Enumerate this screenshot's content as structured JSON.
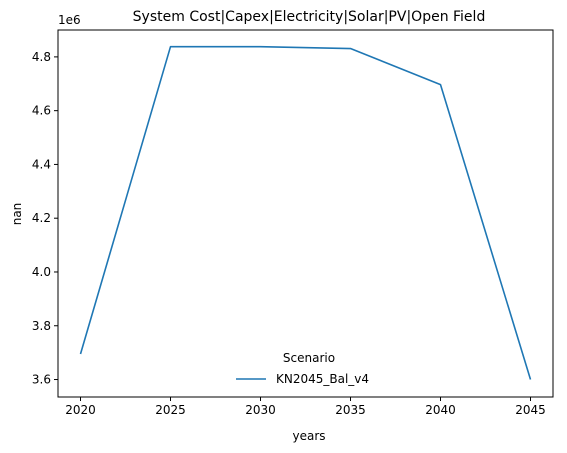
{
  "chart_data": {
    "type": "line",
    "title": "System Cost|Capex|Electricity|Solar|PV|Open Field",
    "xlabel": "years",
    "ylabel": "nan",
    "y_offset_label": "1e6",
    "x": [
      2020,
      2025,
      2030,
      2035,
      2040,
      2045
    ],
    "x_ticks": [
      "2020",
      "2025",
      "2030",
      "2035",
      "2040",
      "2045"
    ],
    "y_ticks": [
      "3.6",
      "3.8",
      "4.0",
      "4.2",
      "4.4",
      "4.6",
      "4.8"
    ],
    "y_tick_values": [
      3600000,
      3800000,
      4000000,
      4200000,
      4400000,
      4600000,
      4800000
    ],
    "xlim": [
      2018.75,
      2046.25
    ],
    "ylim": [
      3535000,
      4900000
    ],
    "grid": false,
    "legend": {
      "title": "Scenario",
      "placement": "lower-center"
    },
    "series": [
      {
        "name": "KN2045_Bal_v4",
        "color": "#1f77b4",
        "values": [
          3695000,
          4838000,
          4838000,
          4831000,
          4697000,
          3600000
        ]
      }
    ]
  }
}
